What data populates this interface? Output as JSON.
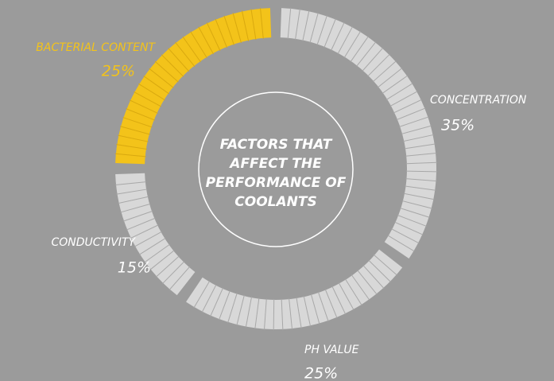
{
  "chart_data": {
    "type": "donut",
    "title": "FACTORS THAT AFFECT THE PERFORMANCE OF COOLANTS",
    "categories": [
      "CONCENTRATION",
      "PH VALUE",
      "CONDUCTIVITY",
      "BACTERIAL CONTENT"
    ],
    "values": [
      35,
      25,
      15,
      25
    ],
    "value_labels": [
      "35%",
      "25%",
      "15%",
      "25%"
    ],
    "colors": [
      "#d8d8d8",
      "#d8d8d8",
      "#d8d8d8",
      "#f3c31a"
    ]
  }
}
